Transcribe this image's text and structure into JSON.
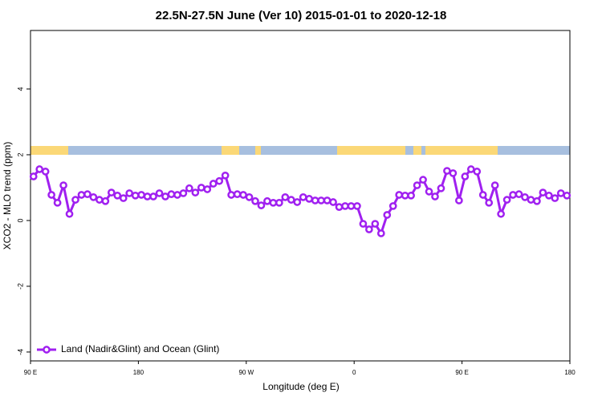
{
  "chart_data": {
    "type": "line",
    "title": "22.5N-27.5N June (Ver 10)   2015-01-01 to 2020-12-18",
    "x_label": "Longitude (deg E)",
    "y_label": "XCO2 - MLO trend (ppm)",
    "x": [
      92.5,
      97.5,
      102.5,
      107.5,
      112.5,
      117.5,
      122.5,
      127.5,
      132.5,
      137.5,
      142.5,
      147.5,
      152.5,
      157.5,
      162.5,
      167.5,
      172.5,
      177.5,
      182.5,
      187.5,
      192.5,
      197.5,
      202.5,
      207.5,
      212.5,
      217.5,
      222.5,
      227.5,
      232.5,
      237.5,
      242.5,
      247.5,
      252.5,
      257.5,
      262.5,
      267.5,
      272.5,
      277.5,
      282.5,
      287.5,
      292.5,
      297.5,
      302.5,
      307.5,
      312.5,
      317.5,
      322.5,
      327.5,
      332.5,
      337.5,
      342.5,
      347.5,
      352.5,
      357.5,
      362.5,
      367.5,
      372.5,
      377.5,
      382.5,
      387.5,
      392.5,
      397.5,
      402.5,
      407.5,
      412.5,
      417.5,
      422.5,
      427.5,
      432.5,
      437.5,
      442.5,
      447.5,
      452.5,
      457.5,
      462.5,
      467.5,
      472.5,
      477.5,
      482.5,
      487.5,
      492.5,
      497.5,
      502.5,
      507.5,
      512.5,
      517.5,
      522.5,
      527.5,
      532.5,
      537.5
    ],
    "series": [
      {
        "name": "Land (Nadir&Glint) and Ocean (Glint)",
        "color": "#a020f0",
        "values": [
          1.34,
          1.56,
          1.49,
          0.78,
          0.54,
          1.07,
          0.2,
          0.63,
          0.78,
          0.8,
          0.71,
          0.63,
          0.59,
          0.85,
          0.76,
          0.68,
          0.83,
          0.76,
          0.78,
          0.73,
          0.73,
          0.83,
          0.73,
          0.8,
          0.78,
          0.83,
          0.98,
          0.85,
          1.0,
          0.95,
          1.12,
          1.2,
          1.37,
          0.78,
          0.8,
          0.78,
          0.71,
          0.59,
          0.46,
          0.59,
          0.54,
          0.54,
          0.71,
          0.63,
          0.56,
          0.71,
          0.66,
          0.61,
          0.61,
          0.61,
          0.56,
          0.41,
          0.44,
          0.44,
          0.44,
          -0.1,
          -0.27,
          -0.1,
          -0.39,
          0.17,
          0.44,
          0.78,
          0.76,
          0.76,
          1.07,
          1.24,
          0.88,
          0.73,
          0.98,
          1.51,
          1.44,
          0.61,
          1.34,
          1.56,
          1.49,
          0.78,
          0.54,
          1.07,
          0.2,
          0.63,
          0.78,
          0.8,
          0.71,
          0.63,
          0.59,
          0.85,
          0.76,
          0.68,
          0.83,
          0.76
        ]
      }
    ],
    "xlim": [
      90,
      540
    ],
    "xticks": [
      {
        "value": 90,
        "label": "90 E"
      },
      180,
      {
        "value": 270,
        "label": "90 W"
      },
      {
        "value": 360,
        "label": "0"
      },
      {
        "value": 450,
        "label": "90 E"
      },
      {
        "value": 540,
        "label": "180"
      }
    ],
    "ylim": [
      -4.27,
      5.78
    ],
    "yticks": [
      -4,
      -2,
      0,
      2,
      4
    ],
    "legend": "bottom-left"
  }
}
